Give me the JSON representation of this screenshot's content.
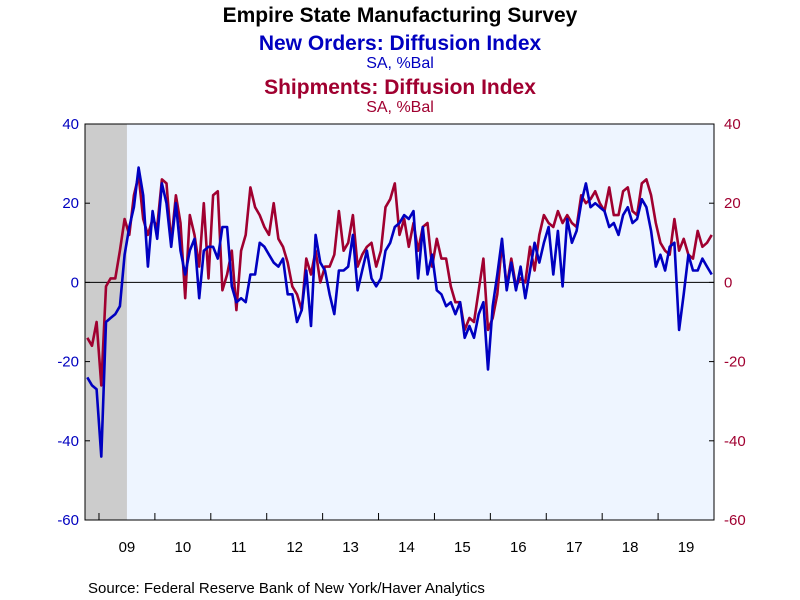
{
  "chart_data": {
    "type": "line",
    "title": "Empire State Manufacturing Survey",
    "series_titles": [
      {
        "text": "New Orders: Diffusion Index",
        "units": "SA, %Bal",
        "color": "#0000c0"
      },
      {
        "text": "Shipments: Diffusion Index",
        "units": "SA, %Bal",
        "color": "#a00030"
      }
    ],
    "source": "Source:  Federal Reserve Bank of New York/Haver Analytics",
    "x_start": "2008-10",
    "x_end": "2019-12",
    "x_tick_labels": [
      "09",
      "10",
      "11",
      "12",
      "13",
      "14",
      "15",
      "16",
      "17",
      "18",
      "19"
    ],
    "ylim": [
      -60,
      40
    ],
    "y_tick_labels_left": [
      "40",
      "20",
      "0",
      "-20",
      "-40",
      "-60"
    ],
    "y_tick_labels_right": [
      "40",
      "20",
      "0",
      "-20",
      "-40",
      "-60"
    ],
    "recession": {
      "start": "2008-10",
      "end": "2009-06",
      "color": "#cccccc"
    },
    "zero_line": true,
    "plot_background": "#eef5ff",
    "series": [
      {
        "name": "New Orders: Diffusion Index",
        "color": "#0000c0",
        "x": [
          "2008-10",
          "2008-11",
          "2008-12",
          "2009-01",
          "2009-02",
          "2009-03",
          "2009-04",
          "2009-05",
          "2009-06",
          "2009-07",
          "2009-08",
          "2009-09",
          "2009-10",
          "2009-11",
          "2009-12",
          "2010-01",
          "2010-02",
          "2010-03",
          "2010-04",
          "2010-05",
          "2010-06",
          "2010-07",
          "2010-08",
          "2010-09",
          "2010-10",
          "2010-11",
          "2010-12",
          "2011-01",
          "2011-02",
          "2011-03",
          "2011-04",
          "2011-05",
          "2011-06",
          "2011-07",
          "2011-08",
          "2011-09",
          "2011-10",
          "2011-11",
          "2011-12",
          "2012-01",
          "2012-02",
          "2012-03",
          "2012-04",
          "2012-05",
          "2012-06",
          "2012-07",
          "2012-08",
          "2012-09",
          "2012-10",
          "2012-11",
          "2012-12",
          "2013-01",
          "2013-02",
          "2013-03",
          "2013-04",
          "2013-05",
          "2013-06",
          "2013-07",
          "2013-08",
          "2013-09",
          "2013-10",
          "2013-11",
          "2013-12",
          "2014-01",
          "2014-02",
          "2014-03",
          "2014-04",
          "2014-05",
          "2014-06",
          "2014-07",
          "2014-08",
          "2014-09",
          "2014-10",
          "2014-11",
          "2014-12",
          "2015-01",
          "2015-02",
          "2015-03",
          "2015-04",
          "2015-05",
          "2015-06",
          "2015-07",
          "2015-08",
          "2015-09",
          "2015-10",
          "2015-11",
          "2015-12",
          "2016-01",
          "2016-02",
          "2016-03",
          "2016-04",
          "2016-05",
          "2016-06",
          "2016-07",
          "2016-08",
          "2016-09",
          "2016-10",
          "2016-11",
          "2016-12",
          "2017-01",
          "2017-02",
          "2017-03",
          "2017-04",
          "2017-05",
          "2017-06",
          "2017-07",
          "2017-08",
          "2017-09",
          "2017-10",
          "2017-11",
          "2017-12",
          "2018-01",
          "2018-02",
          "2018-03",
          "2018-04",
          "2018-05",
          "2018-06",
          "2018-07",
          "2018-08",
          "2018-09",
          "2018-10",
          "2018-11",
          "2018-12",
          "2019-01",
          "2019-02",
          "2019-03",
          "2019-04",
          "2019-05",
          "2019-06",
          "2019-07",
          "2019-08",
          "2019-09",
          "2019-10",
          "2019-11",
          "2019-12"
        ],
        "values": [
          -24,
          -26,
          -27,
          -44,
          -10,
          -9,
          -8,
          -6,
          7,
          14,
          19,
          29,
          22,
          4,
          18,
          11,
          25,
          20,
          9,
          20,
          8,
          2,
          8,
          11,
          -4,
          8,
          9,
          9,
          6,
          14,
          14,
          -1,
          -5,
          -4,
          -5,
          2,
          2,
          10,
          9,
          7,
          5,
          4,
          6,
          -3,
          -3,
          -10,
          -7,
          3,
          -11,
          12,
          5,
          3,
          -3,
          -8,
          3,
          3,
          4,
          12,
          -2,
          3,
          8,
          1,
          -1,
          1,
          8,
          10,
          14,
          15,
          17,
          16,
          18,
          1,
          14,
          2,
          7,
          -2,
          -3,
          -6,
          -5,
          -8,
          -5,
          -14,
          -11,
          -14,
          -8,
          -5,
          -22,
          -6,
          2,
          11,
          -2,
          5,
          -2,
          4,
          -4,
          3,
          10,
          5,
          10,
          14,
          2,
          13,
          -1,
          16,
          10,
          13,
          20,
          25,
          19,
          20,
          19,
          18,
          14,
          15,
          12,
          17,
          19,
          15,
          16,
          21,
          19,
          13,
          4,
          7,
          3,
          9,
          10,
          -12,
          -3,
          7,
          3,
          3,
          6,
          4,
          2
        ]
      },
      {
        "name": "Shipments: Diffusion Index",
        "color": "#a00030",
        "x": [
          "2008-10",
          "2008-11",
          "2008-12",
          "2009-01",
          "2009-02",
          "2009-03",
          "2009-04",
          "2009-05",
          "2009-06",
          "2009-07",
          "2009-08",
          "2009-09",
          "2009-10",
          "2009-11",
          "2009-12",
          "2010-01",
          "2010-02",
          "2010-03",
          "2010-04",
          "2010-05",
          "2010-06",
          "2010-07",
          "2010-08",
          "2010-09",
          "2010-10",
          "2010-11",
          "2010-12",
          "2011-01",
          "2011-02",
          "2011-03",
          "2011-04",
          "2011-05",
          "2011-06",
          "2011-07",
          "2011-08",
          "2011-09",
          "2011-10",
          "2011-11",
          "2011-12",
          "2012-01",
          "2012-02",
          "2012-03",
          "2012-04",
          "2012-05",
          "2012-06",
          "2012-07",
          "2012-08",
          "2012-09",
          "2012-10",
          "2012-11",
          "2012-12",
          "2013-01",
          "2013-02",
          "2013-03",
          "2013-04",
          "2013-05",
          "2013-06",
          "2013-07",
          "2013-08",
          "2013-09",
          "2013-10",
          "2013-11",
          "2013-12",
          "2014-01",
          "2014-02",
          "2014-03",
          "2014-04",
          "2014-05",
          "2014-06",
          "2014-07",
          "2014-08",
          "2014-09",
          "2014-10",
          "2014-11",
          "2014-12",
          "2015-01",
          "2015-02",
          "2015-03",
          "2015-04",
          "2015-05",
          "2015-06",
          "2015-07",
          "2015-08",
          "2015-09",
          "2015-10",
          "2015-11",
          "2015-12",
          "2016-01",
          "2016-02",
          "2016-03",
          "2016-04",
          "2016-05",
          "2016-06",
          "2016-07",
          "2016-08",
          "2016-09",
          "2016-10",
          "2016-11",
          "2016-12",
          "2017-01",
          "2017-02",
          "2017-03",
          "2017-04",
          "2017-05",
          "2017-06",
          "2017-07",
          "2017-08",
          "2017-09",
          "2017-10",
          "2017-11",
          "2017-12",
          "2018-01",
          "2018-02",
          "2018-03",
          "2018-04",
          "2018-05",
          "2018-06",
          "2018-07",
          "2018-08",
          "2018-09",
          "2018-10",
          "2018-11",
          "2018-12",
          "2019-01",
          "2019-02",
          "2019-03",
          "2019-04",
          "2019-05",
          "2019-06",
          "2019-07",
          "2019-08",
          "2019-09",
          "2019-10",
          "2019-11",
          "2019-12"
        ],
        "values": [
          -14,
          -16,
          -10,
          -26,
          -1,
          1,
          1,
          8,
          16,
          12,
          22,
          27,
          16,
          12,
          16,
          14,
          26,
          25,
          10,
          22,
          15,
          -4,
          17,
          12,
          4,
          20,
          1,
          22,
          23,
          -2,
          2,
          8,
          -7,
          8,
          12,
          24,
          19,
          17,
          14,
          12,
          20,
          11,
          9,
          5,
          -1,
          -3,
          -7,
          6,
          2,
          8,
          0,
          4,
          4,
          7,
          18,
          8,
          10,
          17,
          4,
          7,
          9,
          10,
          4,
          8,
          19,
          21,
          25,
          12,
          16,
          9,
          15,
          8,
          14,
          15,
          4,
          11,
          6,
          6,
          -1,
          -5,
          -5,
          -12,
          -9,
          -10,
          -2,
          6,
          -12,
          -9,
          -3,
          10,
          -1,
          6,
          -1,
          1,
          0,
          9,
          3,
          12,
          17,
          15,
          14,
          18,
          15,
          17,
          15,
          14,
          22,
          20,
          21,
          23,
          20,
          18,
          24,
          17,
          17,
          23,
          24,
          18,
          17,
          25,
          26,
          22,
          15,
          10,
          8,
          7,
          16,
          8,
          11,
          7,
          6,
          13,
          9,
          10,
          12
        ]
      }
    ]
  }
}
